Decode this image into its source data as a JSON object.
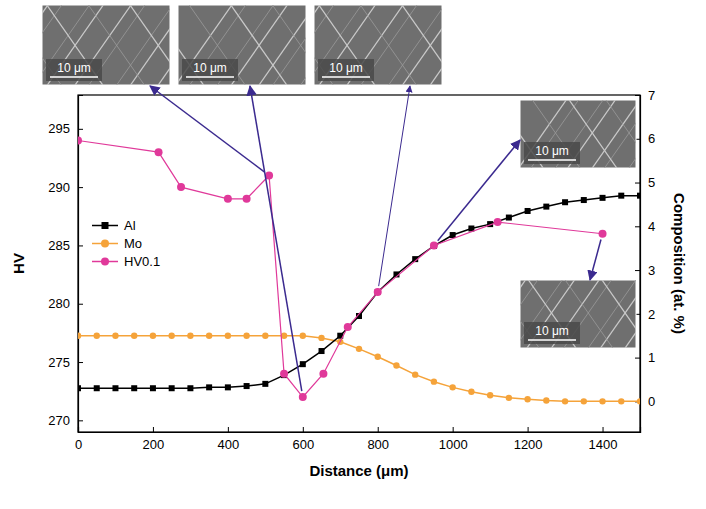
{
  "chart_data": {
    "type": "line",
    "x_label": "Distance (μm)",
    "y_label": "HV",
    "y2_label": "Composition (at. %)",
    "xlim": [
      0,
      1500
    ],
    "xticks": [
      0,
      200,
      400,
      600,
      800,
      1000,
      1200,
      1400
    ],
    "ylim": [
      269,
      297.9
    ],
    "yticks": [
      270,
      275,
      280,
      285,
      290,
      295
    ],
    "y2lim": [
      -0.7,
      7
    ],
    "y2ticks": [
      0,
      1,
      2,
      3,
      4,
      5,
      6,
      7
    ],
    "legend": "center left",
    "series": [
      {
        "name": "Al",
        "color": "#000000",
        "marker": "square",
        "axis": "y2",
        "x": [
          0,
          50,
          100,
          150,
          200,
          250,
          300,
          350,
          400,
          450,
          500,
          550,
          600,
          650,
          700,
          750,
          800,
          850,
          900,
          950,
          1000,
          1050,
          1100,
          1150,
          1200,
          1250,
          1300,
          1350,
          1400,
          1450,
          1500
        ],
        "values": [
          0.3,
          0.3,
          0.3,
          0.3,
          0.3,
          0.3,
          0.3,
          0.32,
          0.32,
          0.35,
          0.4,
          0.6,
          0.85,
          1.15,
          1.5,
          1.95,
          2.5,
          2.9,
          3.25,
          3.55,
          3.8,
          3.95,
          4.05,
          4.2,
          4.35,
          4.45,
          4.55,
          4.6,
          4.65,
          4.7,
          4.7
        ]
      },
      {
        "name": "Mo",
        "color": "#f5a33a",
        "marker": "circle",
        "axis": "y2",
        "x": [
          0,
          50,
          100,
          150,
          200,
          250,
          300,
          350,
          400,
          450,
          500,
          550,
          600,
          650,
          700,
          750,
          800,
          850,
          900,
          950,
          1000,
          1050,
          1100,
          1150,
          1200,
          1250,
          1300,
          1350,
          1400,
          1450,
          1500
        ],
        "values": [
          1.5,
          1.5,
          1.5,
          1.5,
          1.5,
          1.5,
          1.5,
          1.5,
          1.5,
          1.5,
          1.5,
          1.5,
          1.5,
          1.45,
          1.36,
          1.2,
          1.02,
          0.82,
          0.61,
          0.45,
          0.32,
          0.22,
          0.14,
          0.08,
          0.05,
          0.02,
          0,
          0,
          0,
          0,
          0
        ]
      },
      {
        "name": "HV0.1",
        "color": "#e0399a",
        "marker": "circle",
        "x": [
          0,
          215,
          275,
          400,
          450,
          510,
          550,
          600,
          655,
          720,
          800,
          950,
          1120,
          1400
        ],
        "values": [
          294,
          293,
          290,
          289,
          289,
          291,
          274,
          272,
          274,
          278,
          281,
          285,
          287,
          286
        ]
      }
    ],
    "micrographs": [
      {
        "scale_bar": "10 μm",
        "point": 5
      },
      {
        "scale_bar": "10 μm",
        "point": 7
      },
      {
        "scale_bar": "10 μm",
        "point": 10
      },
      {
        "scale_bar": "10 μm",
        "point": 11
      },
      {
        "scale_bar": "10 μm",
        "point": 13
      }
    ]
  }
}
